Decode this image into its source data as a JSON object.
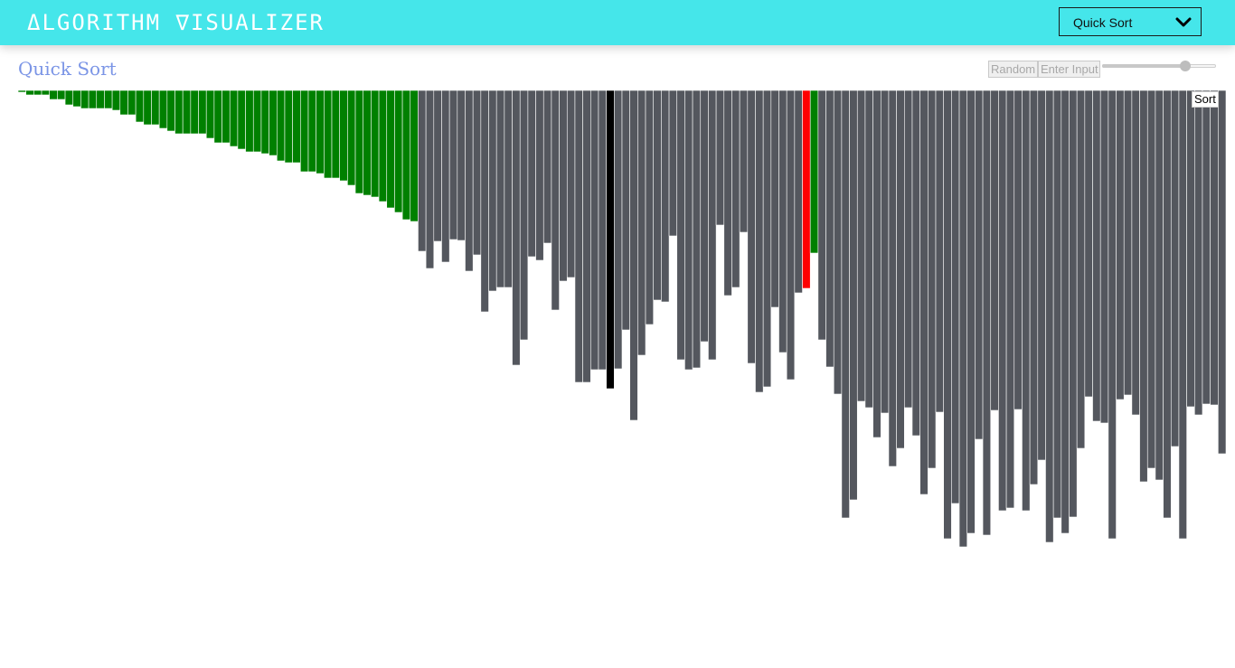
{
  "navbar": {
    "brand": "ΔLGORITHM ∇ISUALIZER"
  },
  "algorithm_select": {
    "selected": "Quick Sort",
    "icon": "chevron-down-icon"
  },
  "page": {
    "title": "Quick Sort"
  },
  "controls": {
    "random_label": "Random",
    "enter_input_label": "Enter Input",
    "speed_slider_value": 0.73,
    "sort_label": "Sort"
  },
  "colors": {
    "navbar": "#45e6ea",
    "title": "#7b95e6",
    "bar_default": "#54575e",
    "bar_sorted": "#008000",
    "bar_pivot": "#ff0000",
    "bar_compare": "#000000"
  },
  "bars": {
    "values": [
      2,
      5,
      5,
      5,
      10,
      10,
      16,
      18,
      20,
      20,
      20,
      20,
      22,
      27,
      27,
      35,
      38,
      38,
      42,
      45,
      48,
      48,
      48,
      48,
      53,
      58,
      58,
      62,
      65,
      68,
      68,
      70,
      72,
      78,
      80,
      80,
      90,
      90,
      92,
      97,
      97,
      100,
      105,
      114,
      116,
      118,
      123,
      130,
      135,
      143,
      145,
      178,
      197,
      167,
      190,
      165,
      166,
      200,
      182,
      245,
      222,
      218,
      218,
      304,
      276,
      184,
      188,
      169,
      243,
      211,
      207,
      323,
      323,
      309,
      309,
      330,
      308,
      265,
      365,
      293,
      259,
      232,
      234,
      161,
      298,
      309,
      307,
      278,
      298,
      149,
      227,
      218,
      157,
      302,
      334,
      328,
      240,
      290,
      320,
      224,
      219,
      180,
      276,
      306,
      336,
      473,
      453,
      344,
      351,
      384,
      357,
      416,
      396,
      351,
      382,
      447,
      418,
      356,
      496,
      457,
      505,
      490,
      386,
      492,
      354,
      465,
      462,
      353,
      465,
      436,
      409,
      500,
      473,
      490,
      472,
      396,
      339,
      366,
      368,
      496,
      342,
      337,
      359,
      433,
      418,
      431,
      473,
      394,
      496,
      350,
      359,
      347,
      348,
      402
    ],
    "pivot_index": 100,
    "compare_index": 75,
    "sorted": [
      [
        0,
        50
      ],
      [
        101,
        101
      ]
    ]
  }
}
